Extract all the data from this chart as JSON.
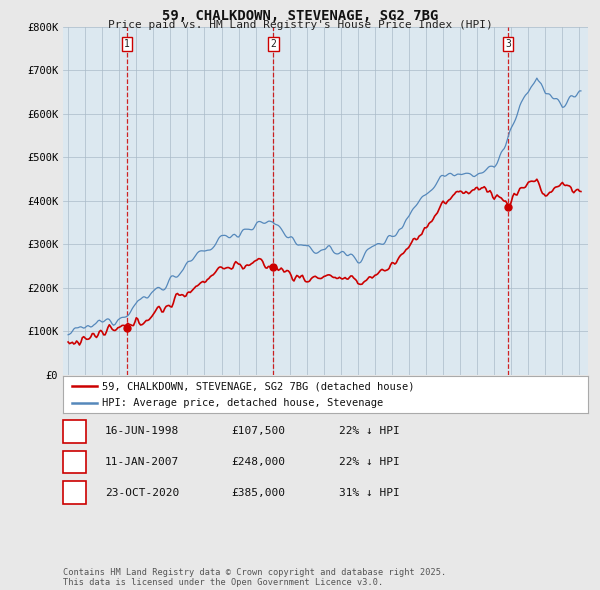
{
  "title": "59, CHALKDOWN, STEVENAGE, SG2 7BG",
  "subtitle": "Price paid vs. HM Land Registry's House Price Index (HPI)",
  "legend_label_red": "59, CHALKDOWN, STEVENAGE, SG2 7BG (detached house)",
  "legend_label_blue": "HPI: Average price, detached house, Stevenage",
  "sale_points": [
    {
      "label": "1",
      "date_num": 1998.46,
      "price": 107500
    },
    {
      "label": "2",
      "date_num": 2007.03,
      "price": 248000
    },
    {
      "label": "3",
      "date_num": 2020.81,
      "price": 385000
    }
  ],
  "table_rows": [
    {
      "num": "1",
      "date": "16-JUN-1998",
      "price": "£107,500",
      "hpi": "22% ↓ HPI"
    },
    {
      "num": "2",
      "date": "11-JAN-2007",
      "price": "£248,000",
      "hpi": "22% ↓ HPI"
    },
    {
      "num": "3",
      "date": "23-OCT-2020",
      "price": "£385,000",
      "hpi": "31% ↓ HPI"
    }
  ],
  "footnote": "Contains HM Land Registry data © Crown copyright and database right 2025.\nThis data is licensed under the Open Government Licence v3.0.",
  "ylim": [
    0,
    800000
  ],
  "yticks": [
    0,
    100000,
    200000,
    300000,
    400000,
    500000,
    600000,
    700000,
    800000
  ],
  "ytick_labels": [
    "£0",
    "£100K",
    "£200K",
    "£300K",
    "£400K",
    "£500K",
    "£600K",
    "£700K",
    "£800K"
  ],
  "bg_color": "#e8e8e8",
  "plot_bg_color": "#dce8f0",
  "red_color": "#cc0000",
  "blue_color": "#5588bb",
  "dashed_color": "#cc0000",
  "grid_color": "#aabbc8"
}
